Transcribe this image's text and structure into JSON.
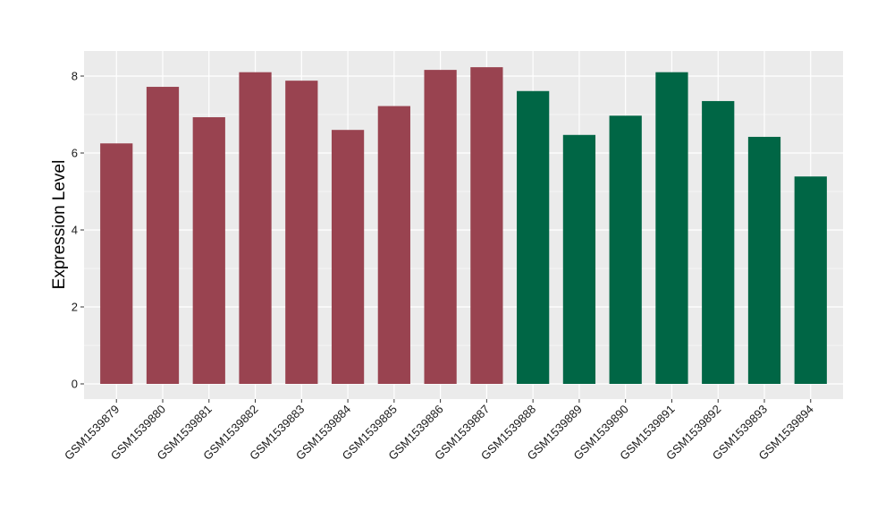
{
  "chart_data": {
    "type": "bar",
    "ylabel": "Expression Level",
    "xlabel": "",
    "ylim": [
      0,
      8.6
    ],
    "y_ticks": [
      0,
      2,
      4,
      6,
      8
    ],
    "grid": true,
    "legend": "none",
    "categories": [
      "GSM1539879",
      "GSM1539880",
      "GSM1539881",
      "GSM1539882",
      "GSM1539883",
      "GSM1539884",
      "GSM1539885",
      "GSM1539886",
      "GSM1539887",
      "GSM1539888",
      "GSM1539889",
      "GSM1539890",
      "GSM1539891",
      "GSM1539892",
      "GSM1539893",
      "GSM1539894"
    ],
    "values": [
      6.25,
      7.72,
      6.93,
      8.1,
      7.88,
      6.6,
      7.22,
      8.16,
      8.23,
      7.61,
      6.47,
      6.97,
      8.1,
      7.35,
      6.42,
      5.39
    ],
    "groups": [
      "a",
      "a",
      "a",
      "a",
      "a",
      "a",
      "a",
      "a",
      "a",
      "b",
      "b",
      "b",
      "b",
      "b",
      "b",
      "b"
    ],
    "colors": {
      "a": "#994350",
      "b": "#006645",
      "panel": "#ebebeb",
      "grid": "#ffffff"
    }
  }
}
